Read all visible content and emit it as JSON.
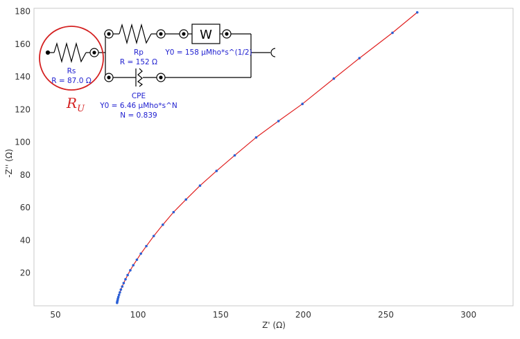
{
  "chart_data": {
    "type": "scatter",
    "title": "",
    "xlabel": "Z' (Ω)",
    "ylabel": "-Z'' (Ω)",
    "xlim": [
      37,
      327
    ],
    "ylim": [
      0,
      182
    ],
    "xticks": [
      "50",
      "100",
      "150",
      "200",
      "250",
      "300"
    ],
    "yticks": [
      "20",
      "40",
      "60",
      "80",
      "100",
      "120",
      "140",
      "160",
      "180"
    ],
    "grid": false,
    "colors": {
      "points": "#2a5fd6",
      "fit": "#e02020",
      "annotation": "#d42020",
      "circuit_text": "#2020d0"
    },
    "series": [
      {
        "x": [
          87.3,
          87.4,
          87.6,
          87.8,
          88.1,
          88.5,
          89.0,
          89.6,
          90.4,
          91.3,
          92.4,
          93.7,
          95.3,
          97.1,
          99.3,
          101.7,
          105.0,
          109.5,
          115.0,
          121.5,
          129.0,
          137.5,
          147.5,
          158.5,
          171.5,
          185.0,
          199.5,
          218.5,
          234.0,
          254.0,
          269.0
        ],
        "y": [
          1.8,
          2.5,
          3.3,
          4.3,
          5.4,
          6.7,
          8.2,
          9.9,
          11.8,
          13.9,
          16.2,
          18.8,
          21.7,
          24.8,
          28.2,
          31.9,
          36.5,
          42.7,
          49.6,
          57.3,
          65.0,
          73.5,
          82.5,
          92.0,
          103.0,
          113.0,
          123.5,
          139.0,
          151.5,
          167.0,
          179.5
        ]
      }
    ],
    "fit_line": true
  },
  "circuit": {
    "rs_label": "Rs",
    "rs_value": "R = 87.0 Ω",
    "rp_label": "Rp",
    "rp_value": "R = 152 Ω",
    "w_symbol": "W",
    "w_value": "Y0 = 158 μMho*s^(1/2)",
    "cpe_label": "CPE",
    "cpe_y0": "Y0 = 6.46 μMho*s^N",
    "cpe_n": "N = 0.839",
    "ru_main": "R",
    "ru_sub": "U"
  }
}
